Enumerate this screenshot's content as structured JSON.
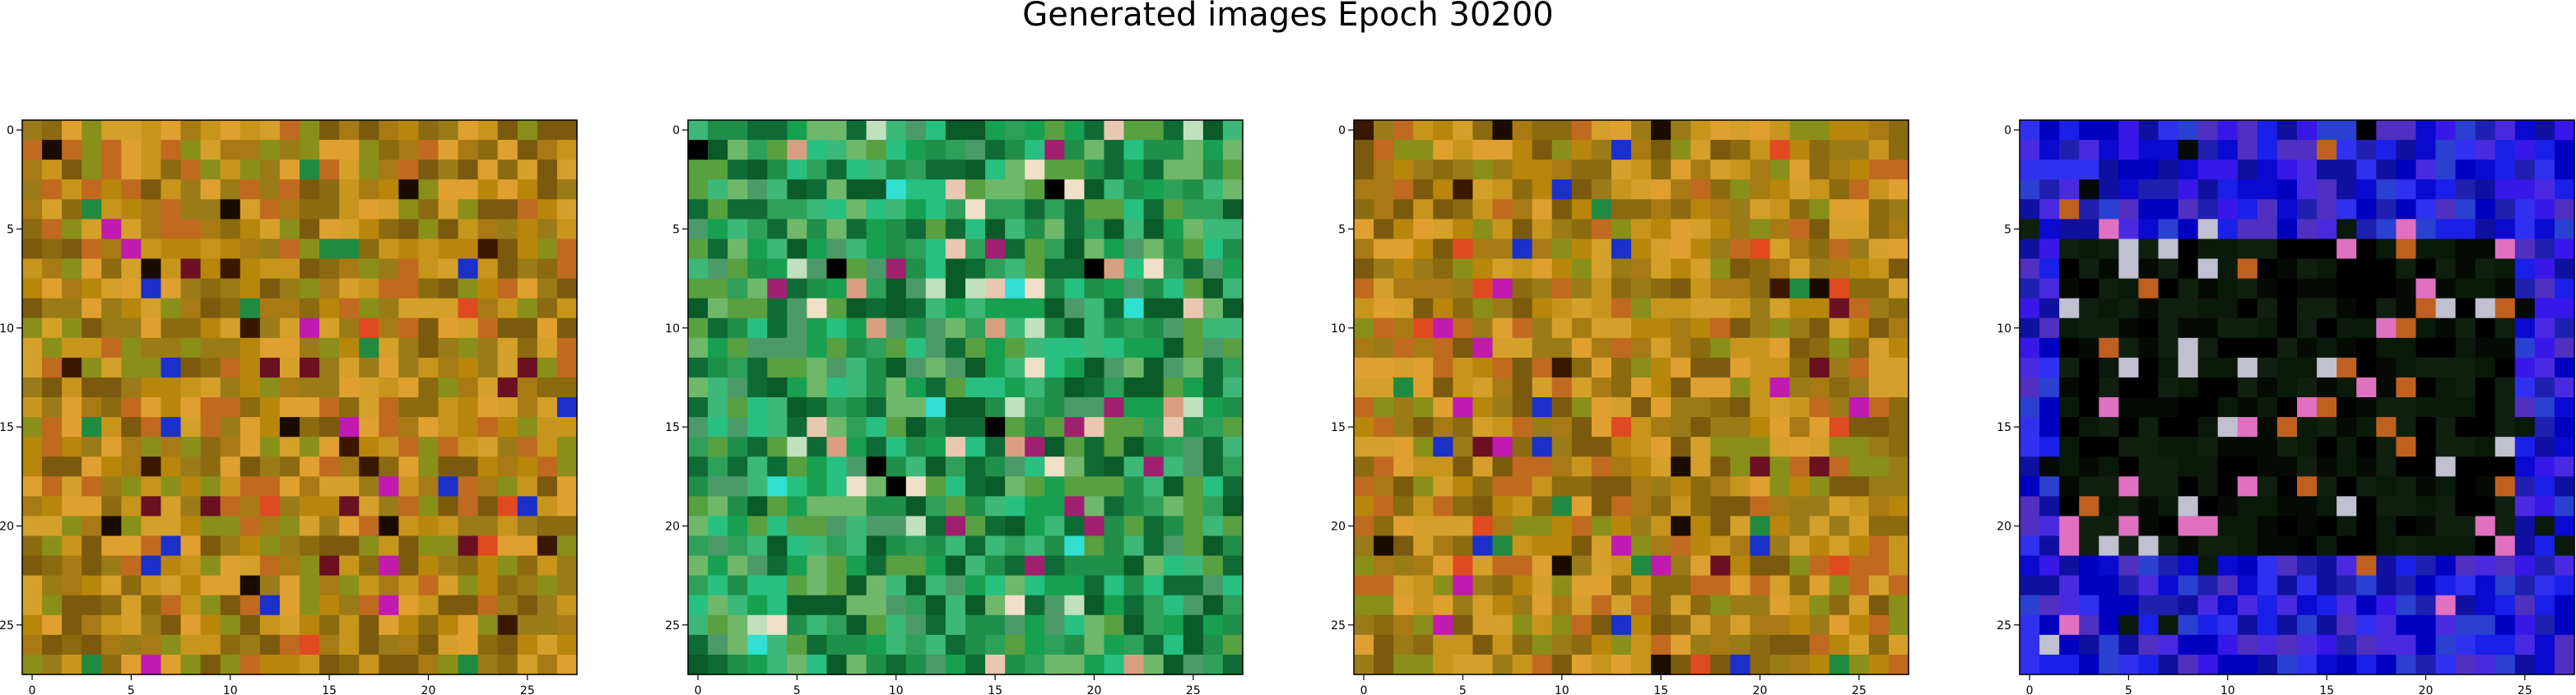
{
  "title": "Generated images Epoch 30200",
  "chart_data": {
    "type": "heatmap",
    "title": "Generated images Epoch 30200",
    "grid": false,
    "panels": [
      {
        "name": "",
        "palette": [
          "#b8860b",
          "#c8951c",
          "#a87a14",
          "#8b6a10",
          "#d4a02a",
          "#9a7b18",
          "#e0a030",
          "#7b5a0d",
          "#c06a20",
          "#8a8f1a"
        ],
        "accent": [
          "#1a0d00",
          "#3a1800",
          "#6a1020",
          "#e04a20",
          "#208a40",
          "#1a30c8",
          "#c01ab0"
        ]
      },
      {
        "name": "",
        "palette": [
          "#1f8f4a",
          "#2ea05a",
          "#0f6b36",
          "#3cb878",
          "#16a050",
          "#4c9a6a",
          "#6fb86a",
          "#0a5a2a",
          "#28c080",
          "#58a040"
        ],
        "accent": [
          "#f0e0c8",
          "#e8c8b0",
          "#d8a080",
          "#c0e0c0",
          "#30e0d0",
          "#000000",
          "#a02070"
        ]
      },
      {
        "name": "",
        "palette": [
          "#b8860b",
          "#c8951c",
          "#a87a14",
          "#8b6a10",
          "#d4a02a",
          "#9a7b18",
          "#e0a030",
          "#7b5a0d",
          "#c06a20",
          "#8a8f1a"
        ],
        "accent": [
          "#1a0d00",
          "#3a1800",
          "#6a1020",
          "#e04a20",
          "#208a40",
          "#1a30c8",
          "#c01ab0"
        ]
      },
      {
        "name": "",
        "palette": [
          "#0a0ad0",
          "#1a20e8",
          "#2020b0",
          "#3030f0",
          "#1010a0",
          "#4a2ae0",
          "#2a40d0",
          "#5030c0",
          "#0000c0",
          "#3818e8"
        ],
        "accent": [
          "#000000",
          "#050a05",
          "#0a1a0a",
          "#102010",
          "#c0c0d0",
          "#e070c0",
          "#c06020"
        ]
      }
    ],
    "x_ticks": [
      0,
      5,
      10,
      15,
      20,
      25
    ],
    "y_ticks": [
      0,
      5,
      10,
      15,
      20,
      25
    ],
    "xlim": [
      -0.5,
      27.5
    ],
    "ylim": [
      27.5,
      -0.5
    ],
    "grid_size": 28
  }
}
